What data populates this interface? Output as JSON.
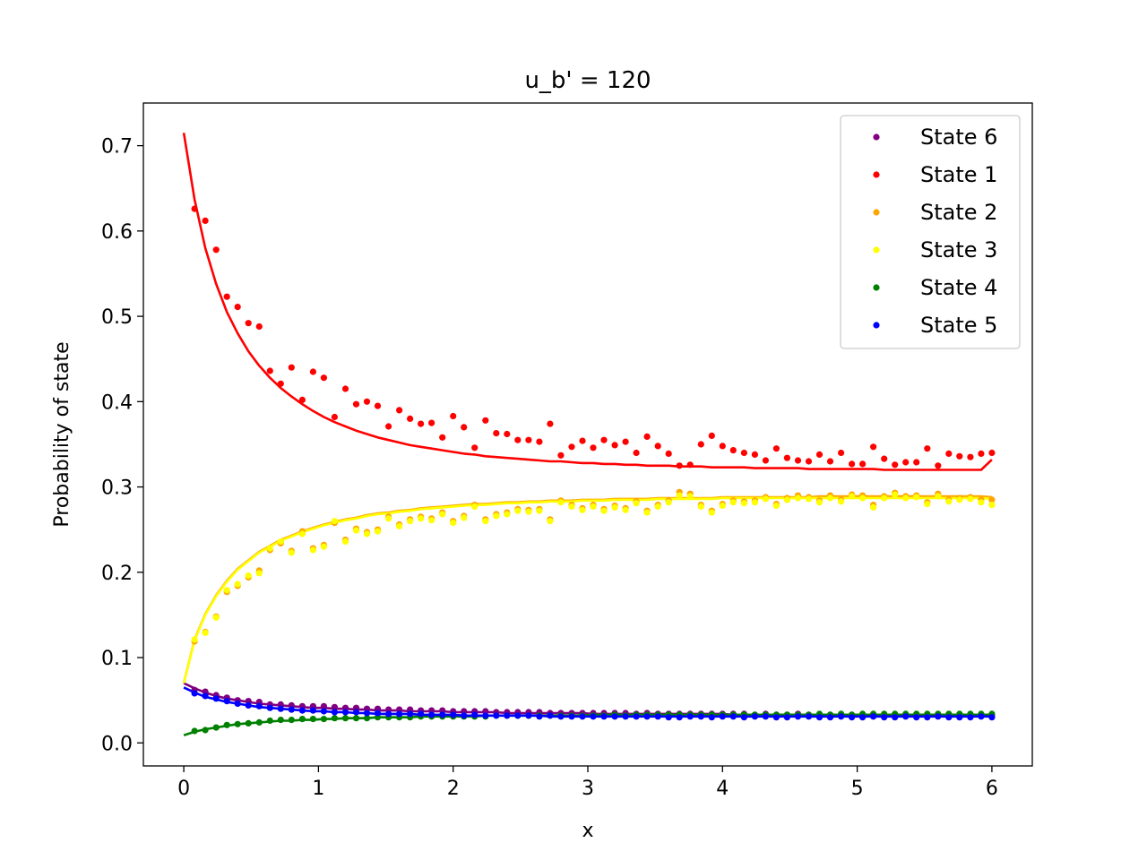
{
  "chart_data": {
    "type": "scatter",
    "title": "u_b' = 120",
    "xlabel": "x",
    "ylabel": "Probability of state",
    "xlim": [
      -0.3,
      6.3
    ],
    "ylim": [
      -0.027,
      0.75
    ],
    "xticks": [
      0,
      1,
      2,
      3,
      4,
      5,
      6
    ],
    "yticks": [
      0.0,
      0.1,
      0.2,
      0.3,
      0.4,
      0.5,
      0.6,
      0.7
    ],
    "xtick_labels": [
      "0",
      "1",
      "2",
      "3",
      "4",
      "5",
      "6"
    ],
    "ytick_labels": [
      "0.0",
      "0.1",
      "0.2",
      "0.3",
      "0.4",
      "0.5",
      "0.6",
      "0.7"
    ],
    "grid": false,
    "legend_position": "top-right",
    "x": [
      0.08,
      0.16,
      0.24,
      0.32,
      0.4,
      0.48,
      0.56,
      0.64,
      0.72,
      0.8,
      0.88,
      0.96,
      1.04,
      1.12,
      1.2,
      1.28,
      1.36,
      1.44,
      1.52,
      1.6,
      1.68,
      1.76,
      1.84,
      1.92,
      2.0,
      2.08,
      2.16,
      2.24,
      2.32,
      2.4,
      2.48,
      2.56,
      2.64,
      2.72,
      2.8,
      2.88,
      2.96,
      3.04,
      3.12,
      3.2,
      3.28,
      3.36,
      3.44,
      3.52,
      3.6,
      3.68,
      3.76,
      3.84,
      3.92,
      4.0,
      4.08,
      4.16,
      4.24,
      4.32,
      4.4,
      4.48,
      4.56,
      4.64,
      4.72,
      4.8,
      4.88,
      4.96,
      5.04,
      5.12,
      5.2,
      5.28,
      5.36,
      5.44,
      5.52,
      5.6,
      5.68,
      5.76,
      5.84,
      5.92,
      6.0
    ],
    "series": [
      {
        "name": "State 6",
        "color": "#800080",
        "values": [
          0.062,
          0.06,
          0.056,
          0.053,
          0.05,
          0.049,
          0.048,
          0.045,
          0.045,
          0.044,
          0.043,
          0.043,
          0.043,
          0.042,
          0.041,
          0.041,
          0.04,
          0.04,
          0.039,
          0.039,
          0.039,
          0.038,
          0.038,
          0.038,
          0.037,
          0.037,
          0.037,
          0.037,
          0.036,
          0.036,
          0.036,
          0.036,
          0.036,
          0.035,
          0.035,
          0.035,
          0.035,
          0.035,
          0.035,
          0.035,
          0.035,
          0.034,
          0.035,
          0.034,
          0.034,
          0.034,
          0.034,
          0.034,
          0.034,
          0.034,
          0.034,
          0.034,
          0.033,
          0.034,
          0.033,
          0.033,
          0.034,
          0.033,
          0.033,
          0.033,
          0.033,
          0.033,
          0.033,
          0.033,
          0.033,
          0.033,
          0.033,
          0.033,
          0.033,
          0.033,
          0.032,
          0.033,
          0.032,
          0.033,
          0.033
        ],
        "fit": [
          0.07,
          0.064,
          0.059,
          0.055,
          0.052,
          0.05,
          0.048,
          0.046,
          0.045,
          0.044,
          0.043,
          0.042,
          0.041,
          0.041,
          0.04,
          0.04,
          0.039,
          0.039,
          0.038,
          0.038,
          0.038,
          0.037,
          0.037,
          0.037,
          0.037,
          0.036,
          0.036,
          0.036,
          0.036,
          0.036,
          0.035,
          0.035,
          0.035,
          0.035,
          0.035,
          0.035,
          0.035,
          0.035,
          0.034,
          0.034,
          0.034,
          0.034,
          0.034,
          0.034,
          0.034,
          0.034,
          0.034,
          0.034,
          0.034,
          0.034,
          0.034,
          0.033,
          0.033,
          0.033,
          0.033,
          0.033,
          0.033,
          0.033,
          0.033,
          0.033,
          0.033,
          0.033,
          0.033,
          0.033,
          0.033,
          0.033,
          0.033,
          0.033,
          0.033,
          0.033,
          0.033,
          0.033,
          0.033,
          0.033,
          0.033,
          0.033
        ]
      },
      {
        "name": "State 1",
        "color": "#ff0000",
        "values": [
          0.626,
          0.612,
          0.578,
          0.523,
          0.511,
          0.492,
          0.488,
          0.436,
          0.421,
          0.44,
          0.402,
          0.435,
          0.428,
          0.382,
          0.415,
          0.397,
          0.4,
          0.395,
          0.371,
          0.39,
          0.38,
          0.374,
          0.375,
          0.358,
          0.383,
          0.37,
          0.346,
          0.378,
          0.363,
          0.362,
          0.355,
          0.355,
          0.353,
          0.374,
          0.337,
          0.347,
          0.354,
          0.346,
          0.355,
          0.349,
          0.353,
          0.34,
          0.359,
          0.348,
          0.339,
          0.325,
          0.326,
          0.35,
          0.36,
          0.348,
          0.343,
          0.34,
          0.338,
          0.331,
          0.345,
          0.334,
          0.331,
          0.33,
          0.338,
          0.33,
          0.34,
          0.327,
          0.327,
          0.347,
          0.333,
          0.326,
          0.329,
          0.329,
          0.345,
          0.325,
          0.339,
          0.336,
          0.335,
          0.339,
          0.34
        ],
        "fit": [
          0.715,
          0.637,
          0.58,
          0.538,
          0.505,
          0.48,
          0.459,
          0.442,
          0.428,
          0.416,
          0.406,
          0.397,
          0.389,
          0.382,
          0.376,
          0.371,
          0.366,
          0.362,
          0.358,
          0.355,
          0.352,
          0.349,
          0.347,
          0.345,
          0.343,
          0.341,
          0.339,
          0.338,
          0.336,
          0.335,
          0.334,
          0.333,
          0.332,
          0.331,
          0.33,
          0.33,
          0.329,
          0.328,
          0.328,
          0.327,
          0.327,
          0.326,
          0.326,
          0.325,
          0.325,
          0.325,
          0.324,
          0.324,
          0.324,
          0.323,
          0.323,
          0.323,
          0.323,
          0.322,
          0.322,
          0.322,
          0.322,
          0.322,
          0.321,
          0.321,
          0.321,
          0.321,
          0.321,
          0.321,
          0.321,
          0.32,
          0.32,
          0.32,
          0.32,
          0.32,
          0.32,
          0.32,
          0.32,
          0.32,
          0.32,
          0.332
        ]
      },
      {
        "name": "State 2",
        "color": "#ffa500",
        "values": [
          0.119,
          0.13,
          0.148,
          0.177,
          0.184,
          0.194,
          0.202,
          0.226,
          0.234,
          0.225,
          0.248,
          0.228,
          0.232,
          0.258,
          0.238,
          0.251,
          0.247,
          0.25,
          0.265,
          0.256,
          0.262,
          0.265,
          0.263,
          0.27,
          0.26,
          0.266,
          0.279,
          0.262,
          0.268,
          0.27,
          0.274,
          0.273,
          0.274,
          0.262,
          0.284,
          0.279,
          0.275,
          0.279,
          0.274,
          0.278,
          0.275,
          0.283,
          0.272,
          0.279,
          0.284,
          0.294,
          0.292,
          0.279,
          0.272,
          0.28,
          0.284,
          0.283,
          0.284,
          0.288,
          0.28,
          0.287,
          0.29,
          0.288,
          0.284,
          0.29,
          0.285,
          0.291,
          0.29,
          0.279,
          0.289,
          0.293,
          0.289,
          0.29,
          0.282,
          0.292,
          0.285,
          0.287,
          0.288,
          0.285,
          0.285
        ],
        "fit": [
          0.07,
          0.121,
          0.151,
          0.173,
          0.19,
          0.204,
          0.214,
          0.224,
          0.231,
          0.238,
          0.243,
          0.248,
          0.252,
          0.256,
          0.259,
          0.262,
          0.264,
          0.267,
          0.269,
          0.27,
          0.272,
          0.273,
          0.275,
          0.276,
          0.277,
          0.278,
          0.279,
          0.28,
          0.28,
          0.281,
          0.282,
          0.282,
          0.283,
          0.283,
          0.284,
          0.284,
          0.284,
          0.285,
          0.285,
          0.285,
          0.286,
          0.286,
          0.286,
          0.286,
          0.287,
          0.287,
          0.287,
          0.287,
          0.287,
          0.287,
          0.288,
          0.288,
          0.288,
          0.288,
          0.288,
          0.288,
          0.288,
          0.288,
          0.288,
          0.289,
          0.289,
          0.289,
          0.289,
          0.289,
          0.289,
          0.289,
          0.289,
          0.289,
          0.289,
          0.289,
          0.289,
          0.289,
          0.289,
          0.289,
          0.289,
          0.288
        ]
      },
      {
        "name": "State 3",
        "color": "#ffff00",
        "values": [
          0.121,
          0.129,
          0.147,
          0.179,
          0.186,
          0.196,
          0.199,
          0.228,
          0.236,
          0.223,
          0.245,
          0.226,
          0.23,
          0.26,
          0.236,
          0.249,
          0.245,
          0.248,
          0.263,
          0.254,
          0.26,
          0.263,
          0.261,
          0.268,
          0.258,
          0.264,
          0.277,
          0.26,
          0.266,
          0.268,
          0.272,
          0.271,
          0.272,
          0.26,
          0.282,
          0.277,
          0.273,
          0.277,
          0.272,
          0.276,
          0.273,
          0.281,
          0.27,
          0.277,
          0.282,
          0.29,
          0.289,
          0.277,
          0.27,
          0.278,
          0.282,
          0.281,
          0.282,
          0.286,
          0.278,
          0.285,
          0.287,
          0.286,
          0.282,
          0.287,
          0.283,
          0.289,
          0.287,
          0.276,
          0.287,
          0.291,
          0.287,
          0.288,
          0.28,
          0.289,
          0.283,
          0.285,
          0.286,
          0.282,
          0.279
        ],
        "fit": [
          0.07,
          0.12,
          0.15,
          0.172,
          0.189,
          0.203,
          0.213,
          0.223,
          0.23,
          0.237,
          0.242,
          0.247,
          0.251,
          0.255,
          0.258,
          0.261,
          0.263,
          0.266,
          0.268,
          0.269,
          0.271,
          0.272,
          0.274,
          0.275,
          0.276,
          0.277,
          0.278,
          0.279,
          0.279,
          0.28,
          0.281,
          0.281,
          0.282,
          0.282,
          0.283,
          0.283,
          0.283,
          0.284,
          0.284,
          0.284,
          0.285,
          0.285,
          0.285,
          0.285,
          0.286,
          0.286,
          0.286,
          0.286,
          0.286,
          0.286,
          0.287,
          0.287,
          0.287,
          0.287,
          0.287,
          0.287,
          0.287,
          0.287,
          0.287,
          0.287,
          0.287,
          0.287,
          0.287,
          0.287,
          0.287,
          0.287,
          0.287,
          0.287,
          0.287,
          0.287,
          0.287,
          0.287,
          0.287,
          0.287,
          0.287,
          0.286
        ]
      },
      {
        "name": "State 4",
        "color": "#008000",
        "values": [
          0.014,
          0.015,
          0.018,
          0.021,
          0.022,
          0.023,
          0.024,
          0.026,
          0.027,
          0.027,
          0.028,
          0.028,
          0.028,
          0.029,
          0.029,
          0.029,
          0.029,
          0.03,
          0.03,
          0.03,
          0.03,
          0.031,
          0.031,
          0.031,
          0.031,
          0.031,
          0.031,
          0.031,
          0.032,
          0.032,
          0.032,
          0.032,
          0.032,
          0.032,
          0.032,
          0.032,
          0.032,
          0.032,
          0.032,
          0.033,
          0.032,
          0.033,
          0.033,
          0.033,
          0.033,
          0.033,
          0.033,
          0.033,
          0.033,
          0.033,
          0.033,
          0.033,
          0.033,
          0.033,
          0.033,
          0.033,
          0.033,
          0.033,
          0.034,
          0.033,
          0.034,
          0.033,
          0.034,
          0.034,
          0.034,
          0.034,
          0.034,
          0.034,
          0.034,
          0.034,
          0.034,
          0.034,
          0.034,
          0.034,
          0.034
        ],
        "fit": [
          0.009,
          0.013,
          0.016,
          0.018,
          0.02,
          0.022,
          0.023,
          0.024,
          0.025,
          0.026,
          0.026,
          0.027,
          0.027,
          0.028,
          0.028,
          0.029,
          0.029,
          0.029,
          0.03,
          0.03,
          0.03,
          0.03,
          0.031,
          0.031,
          0.031,
          0.031,
          0.031,
          0.031,
          0.032,
          0.032,
          0.032,
          0.032,
          0.032,
          0.032,
          0.032,
          0.032,
          0.032,
          0.032,
          0.033,
          0.033,
          0.033,
          0.033,
          0.033,
          0.033,
          0.033,
          0.033,
          0.033,
          0.033,
          0.033,
          0.033,
          0.033,
          0.033,
          0.033,
          0.033,
          0.033,
          0.033,
          0.033,
          0.033,
          0.033,
          0.033,
          0.033,
          0.033,
          0.033,
          0.033,
          0.033,
          0.033,
          0.033,
          0.033,
          0.033,
          0.033,
          0.033,
          0.033,
          0.033,
          0.033,
          0.033,
          0.033
        ]
      },
      {
        "name": "State 5",
        "color": "#0000ff",
        "values": [
          0.058,
          0.055,
          0.052,
          0.049,
          0.046,
          0.044,
          0.043,
          0.041,
          0.04,
          0.039,
          0.038,
          0.038,
          0.037,
          0.036,
          0.036,
          0.036,
          0.035,
          0.035,
          0.034,
          0.034,
          0.034,
          0.034,
          0.033,
          0.033,
          0.033,
          0.032,
          0.033,
          0.032,
          0.032,
          0.032,
          0.032,
          0.032,
          0.031,
          0.032,
          0.031,
          0.031,
          0.031,
          0.031,
          0.031,
          0.031,
          0.031,
          0.031,
          0.031,
          0.031,
          0.03,
          0.03,
          0.031,
          0.031,
          0.03,
          0.031,
          0.031,
          0.03,
          0.031,
          0.031,
          0.03,
          0.03,
          0.031,
          0.031,
          0.03,
          0.03,
          0.031,
          0.03,
          0.03,
          0.031,
          0.03,
          0.03,
          0.031,
          0.03,
          0.03,
          0.031,
          0.03,
          0.03,
          0.03,
          0.031,
          0.03
        ],
        "fit": [
          0.065,
          0.059,
          0.054,
          0.051,
          0.048,
          0.046,
          0.044,
          0.042,
          0.041,
          0.04,
          0.039,
          0.038,
          0.037,
          0.037,
          0.036,
          0.036,
          0.035,
          0.035,
          0.034,
          0.034,
          0.034,
          0.034,
          0.033,
          0.033,
          0.033,
          0.033,
          0.032,
          0.032,
          0.032,
          0.032,
          0.032,
          0.032,
          0.032,
          0.032,
          0.031,
          0.031,
          0.031,
          0.031,
          0.031,
          0.031,
          0.031,
          0.031,
          0.031,
          0.031,
          0.031,
          0.031,
          0.031,
          0.031,
          0.031,
          0.031,
          0.031,
          0.031,
          0.031,
          0.031,
          0.031,
          0.031,
          0.031,
          0.031,
          0.031,
          0.031,
          0.031,
          0.031,
          0.031,
          0.031,
          0.031,
          0.031,
          0.031,
          0.031,
          0.031,
          0.031,
          0.031,
          0.031,
          0.031,
          0.031,
          0.031,
          0.031
        ]
      }
    ],
    "fit_x_start": 0.0,
    "fit_x_end": 6.0
  }
}
